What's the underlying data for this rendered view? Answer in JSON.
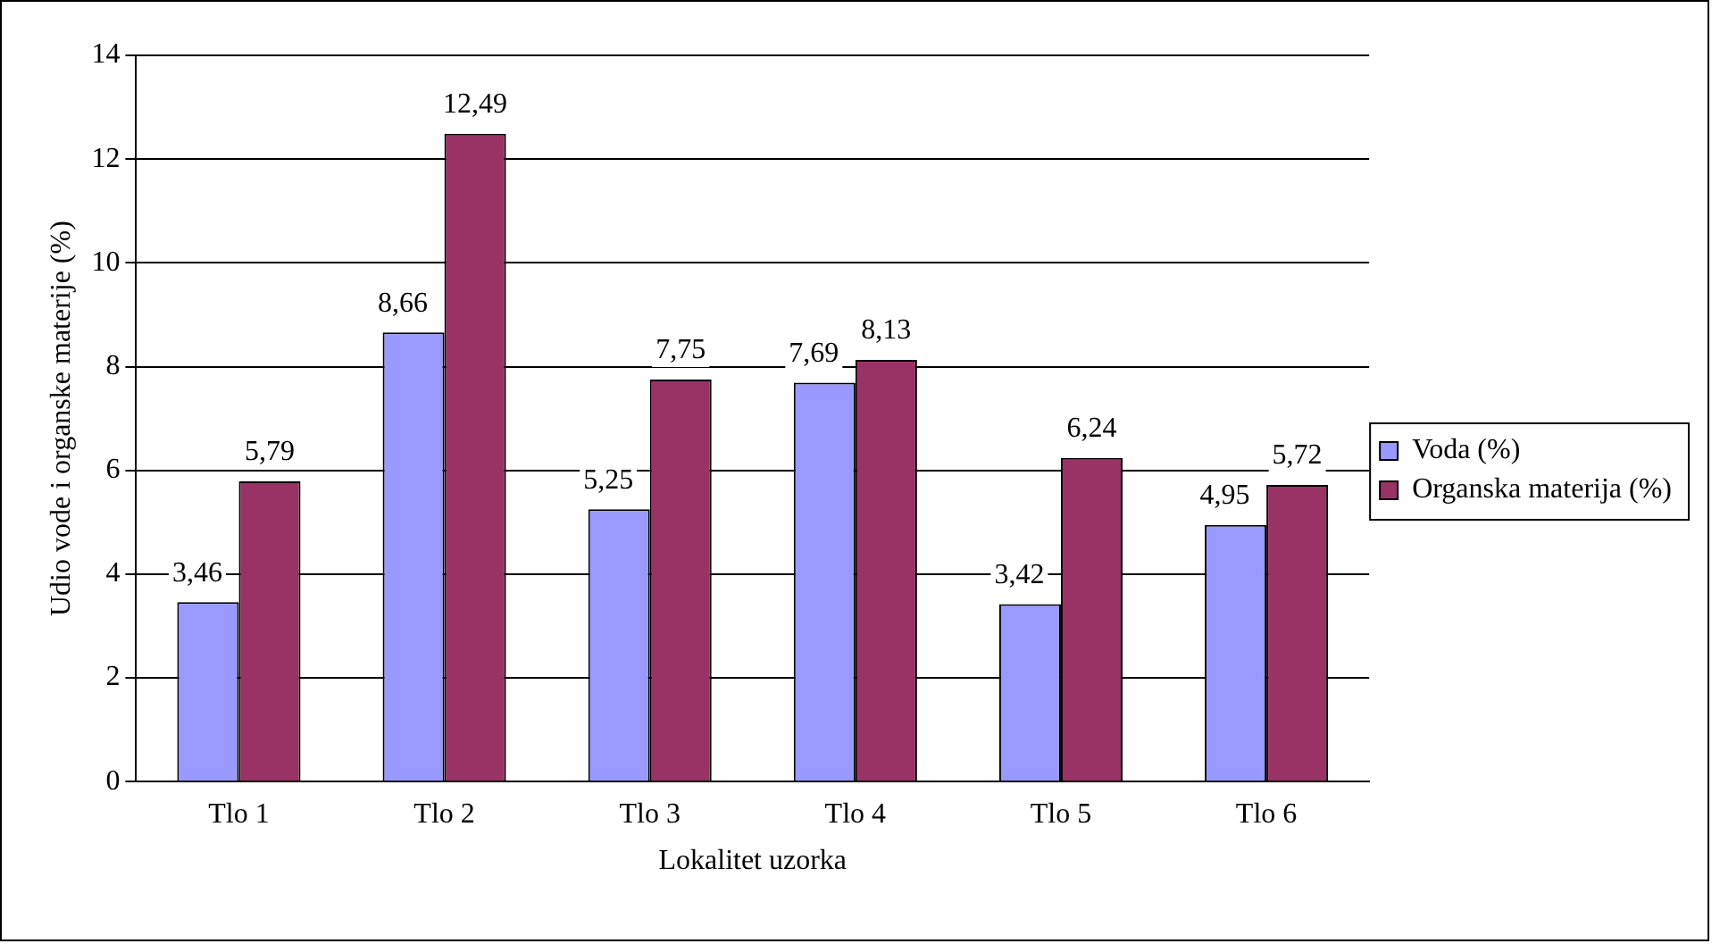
{
  "chart_data": {
    "type": "bar",
    "xlabel": "Lokalitet uzorka",
    "ylabel": "Udio vode i organske materije (%)",
    "categories": [
      "Tlo 1",
      "Tlo 2",
      "Tlo 3",
      "Tlo 4",
      "Tlo 5",
      "Tlo 6"
    ],
    "series": [
      {
        "name": "Voda (%)",
        "color": "#9999ff",
        "values": [
          3.46,
          8.66,
          5.25,
          7.69,
          3.42,
          4.95
        ],
        "value_labels": [
          "3,46",
          "8,66",
          "5,25",
          "7,69",
          "3,42",
          "4,95"
        ]
      },
      {
        "name": "Organska materija (%)",
        "color": "#993366",
        "values": [
          5.79,
          12.49,
          7.75,
          8.13,
          6.24,
          5.72
        ],
        "value_labels": [
          "5,79",
          "12,49",
          "7,75",
          "8,13",
          "6,24",
          "5,72"
        ]
      }
    ],
    "ylim": [
      0,
      14
    ],
    "yticks": [
      0,
      2,
      4,
      6,
      8,
      10,
      12,
      14
    ],
    "grid": "y",
    "legend": "right"
  }
}
